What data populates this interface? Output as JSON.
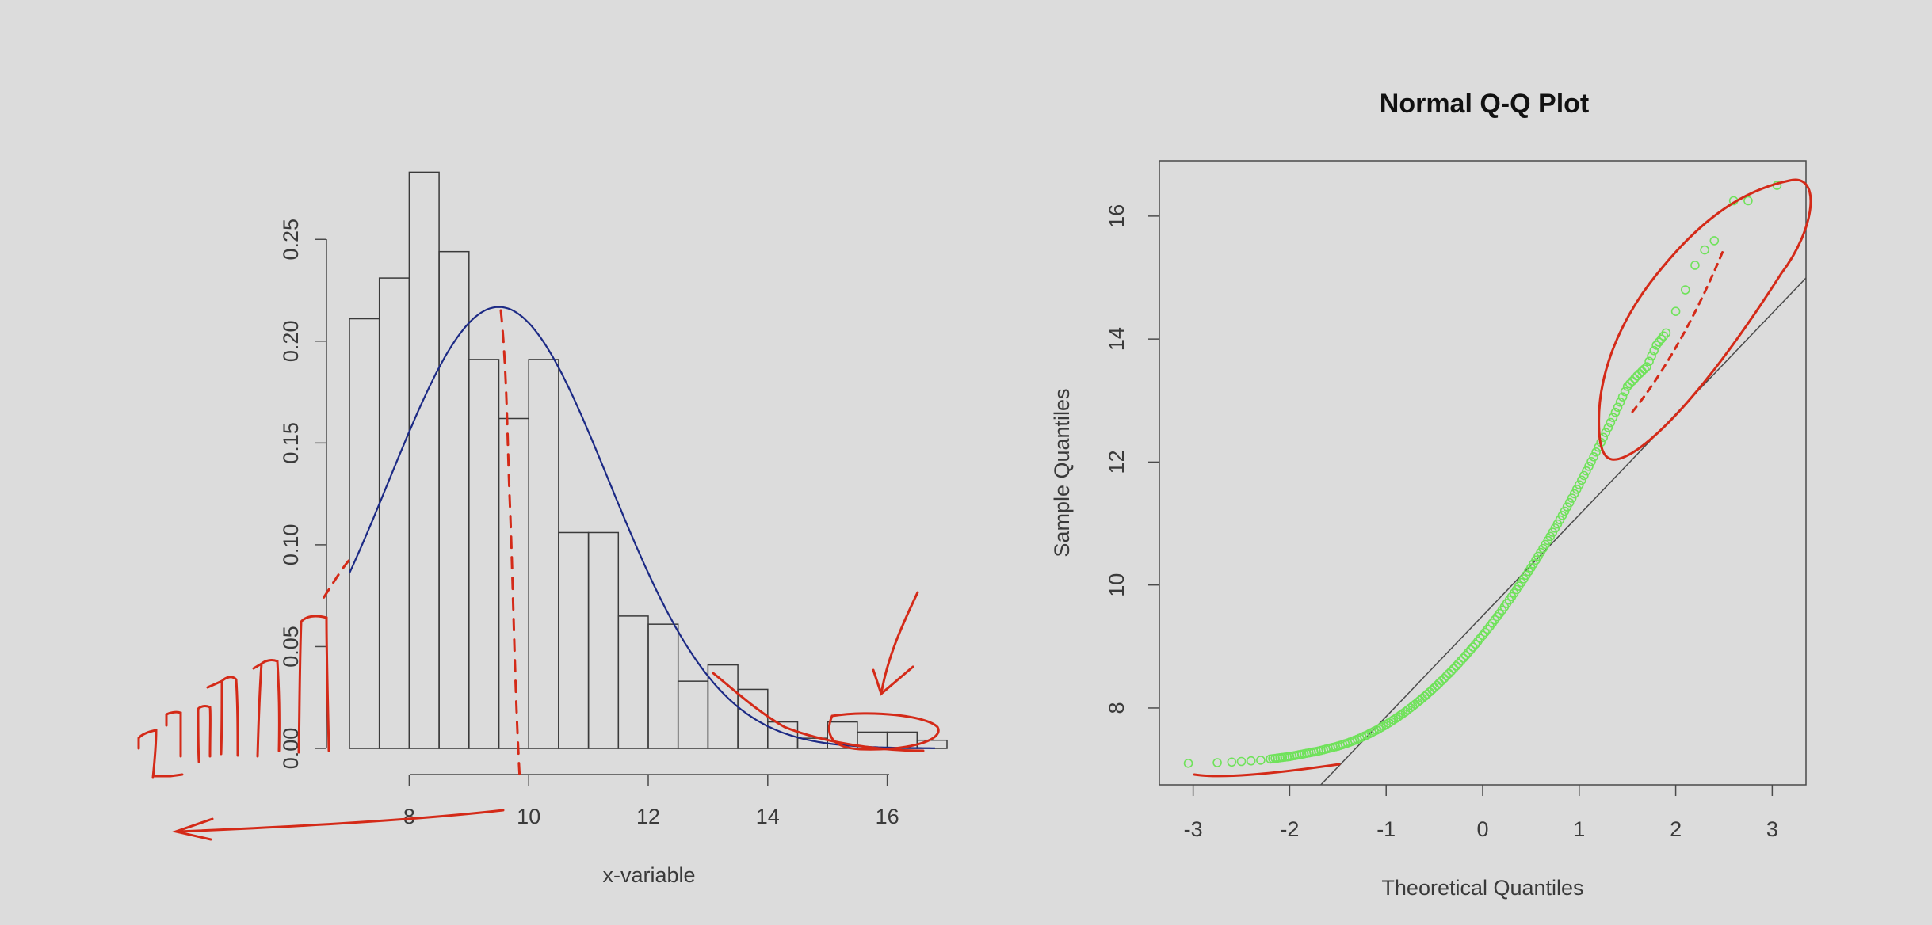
{
  "chart_data": [
    {
      "type": "bar",
      "subtype": "histogram-with-density-curve",
      "title": "",
      "xlabel": "x-variable",
      "ylabel": "",
      "xlim": [
        7,
        17
      ],
      "ylim": [
        0,
        0.28
      ],
      "x_ticks": [
        8,
        10,
        12,
        14,
        16
      ],
      "y_ticks": [
        0.0,
        0.05,
        0.1,
        0.15,
        0.2,
        0.25
      ],
      "x_tick_labels": [
        "8",
        "10",
        "12",
        "14",
        "16"
      ],
      "y_tick_labels": [
        "0.00",
        "0.05",
        "0.10",
        "0.15",
        "0.20",
        "0.25"
      ],
      "bin_width": 0.5,
      "bins": [
        {
          "start": 7.0,
          "density": 0.211
        },
        {
          "start": 7.5,
          "density": 0.231
        },
        {
          "start": 8.0,
          "density": 0.283
        },
        {
          "start": 8.5,
          "density": 0.244
        },
        {
          "start": 9.0,
          "density": 0.191
        },
        {
          "start": 9.5,
          "density": 0.162
        },
        {
          "start": 10.0,
          "density": 0.191
        },
        {
          "start": 10.5,
          "density": 0.106
        },
        {
          "start": 11.0,
          "density": 0.106
        },
        {
          "start": 11.5,
          "density": 0.065
        },
        {
          "start": 12.0,
          "density": 0.061
        },
        {
          "start": 12.5,
          "density": 0.033
        },
        {
          "start": 13.0,
          "density": 0.041
        },
        {
          "start": 13.5,
          "density": 0.029
        },
        {
          "start": 14.0,
          "density": 0.013
        },
        {
          "start": 14.5,
          "density": 0.005
        },
        {
          "start": 15.0,
          "density": 0.013
        },
        {
          "start": 15.5,
          "density": 0.008
        },
        {
          "start": 16.0,
          "density": 0.008
        },
        {
          "start": 16.5,
          "density": 0.004
        }
      ],
      "density_curve": {
        "distribution": "normal",
        "mean": 9.5,
        "sd": 1.84,
        "x_range": [
          7.0,
          16.8
        ]
      },
      "colors": {
        "bars_stroke": "#3a3a3a",
        "curve": "#1c2a85",
        "annotation": "#d42a18"
      }
    },
    {
      "type": "scatter",
      "subtype": "normal-qq-plot",
      "title": "Normal Q-Q Plot",
      "xlabel": "Theoretical Quantiles",
      "ylabel": "Sample Quantiles",
      "xlim": [
        -3.35,
        3.35
      ],
      "ylim": [
        6.75,
        16.9
      ],
      "x_ticks": [
        -3,
        -2,
        -1,
        0,
        1,
        2,
        3
      ],
      "y_ticks": [
        8,
        10,
        12,
        14,
        16
      ],
      "x_tick_labels": [
        "-3",
        "-2",
        "-1",
        "0",
        "1",
        "2",
        "3"
      ],
      "y_tick_labels": [
        "8",
        "10",
        "12",
        "14",
        "16"
      ],
      "qq_line": {
        "intercept": 9.5,
        "slope": 1.64
      },
      "points": [
        [
          -3.05,
          7.1
        ],
        [
          -2.75,
          7.11
        ],
        [
          -2.6,
          7.12
        ],
        [
          -2.5,
          7.13
        ],
        [
          -2.4,
          7.14
        ],
        [
          -2.3,
          7.15
        ],
        [
          -2.2,
          7.17
        ],
        [
          -2.1,
          7.19
        ],
        [
          -2.0,
          7.21
        ],
        [
          -1.9,
          7.24
        ],
        [
          -1.8,
          7.27
        ],
        [
          -1.7,
          7.3
        ],
        [
          -1.6,
          7.34
        ],
        [
          -1.5,
          7.38
        ],
        [
          -1.4,
          7.43
        ],
        [
          -1.3,
          7.49
        ],
        [
          -1.2,
          7.56
        ],
        [
          -1.1,
          7.64
        ],
        [
          -1.0,
          7.73
        ],
        [
          -0.9,
          7.83
        ],
        [
          -0.8,
          7.94
        ],
        [
          -0.7,
          8.06
        ],
        [
          -0.6,
          8.19
        ],
        [
          -0.5,
          8.33
        ],
        [
          -0.4,
          8.48
        ],
        [
          -0.3,
          8.64
        ],
        [
          -0.2,
          8.81
        ],
        [
          -0.1,
          8.99
        ],
        [
          0.0,
          9.18
        ],
        [
          0.1,
          9.38
        ],
        [
          0.2,
          9.59
        ],
        [
          0.3,
          9.81
        ],
        [
          0.4,
          10.04
        ],
        [
          0.5,
          10.28
        ],
        [
          0.6,
          10.53
        ],
        [
          0.7,
          10.79
        ],
        [
          0.8,
          11.06
        ],
        [
          0.9,
          11.34
        ],
        [
          1.0,
          11.63
        ],
        [
          1.1,
          11.93
        ],
        [
          1.2,
          12.24
        ],
        [
          1.3,
          12.56
        ],
        [
          1.4,
          12.89
        ],
        [
          1.5,
          13.23
        ],
        [
          1.6,
          13.4
        ],
        [
          1.7,
          13.55
        ],
        [
          1.8,
          13.9
        ],
        [
          1.9,
          14.1
        ],
        [
          2.0,
          14.45
        ],
        [
          2.1,
          14.8
        ],
        [
          2.2,
          15.2
        ],
        [
          2.3,
          15.45
        ],
        [
          2.4,
          15.6
        ],
        [
          2.6,
          16.25
        ],
        [
          2.75,
          16.25
        ],
        [
          3.05,
          16.5
        ]
      ],
      "colors": {
        "points": "#6fe25a",
        "qq_line": "#4a4a4a",
        "annotation": "#d42a18"
      }
    }
  ]
}
